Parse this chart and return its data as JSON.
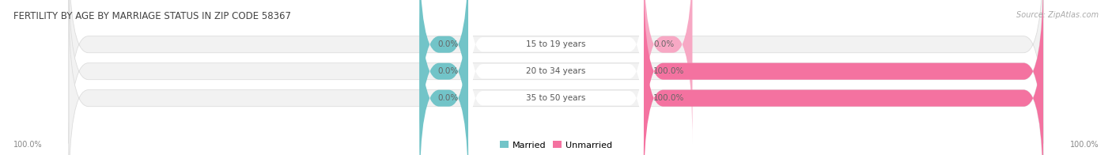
{
  "title": "FERTILITY BY AGE BY MARRIAGE STATUS IN ZIP CODE 58367",
  "source": "Source: ZipAtlas.com",
  "categories": [
    "15 to 19 years",
    "20 to 34 years",
    "35 to 50 years"
  ],
  "married_values": [
    0.0,
    0.0,
    0.0
  ],
  "unmarried_values": [
    0.0,
    100.0,
    100.0
  ],
  "married_color": "#72c4c8",
  "unmarried_color": "#f472a0",
  "unmarried_color_light": "#f7a8c4",
  "bar_bg_color": "#f2f2f2",
  "bar_border_color": "#dddddd",
  "title_color": "#444444",
  "source_color": "#aaaaaa",
  "axis_label_color": "#888888",
  "left_axis_label": "100.0%",
  "right_axis_label": "100.0%",
  "figsize": [
    14.06,
    1.96
  ],
  "dpi": 100
}
